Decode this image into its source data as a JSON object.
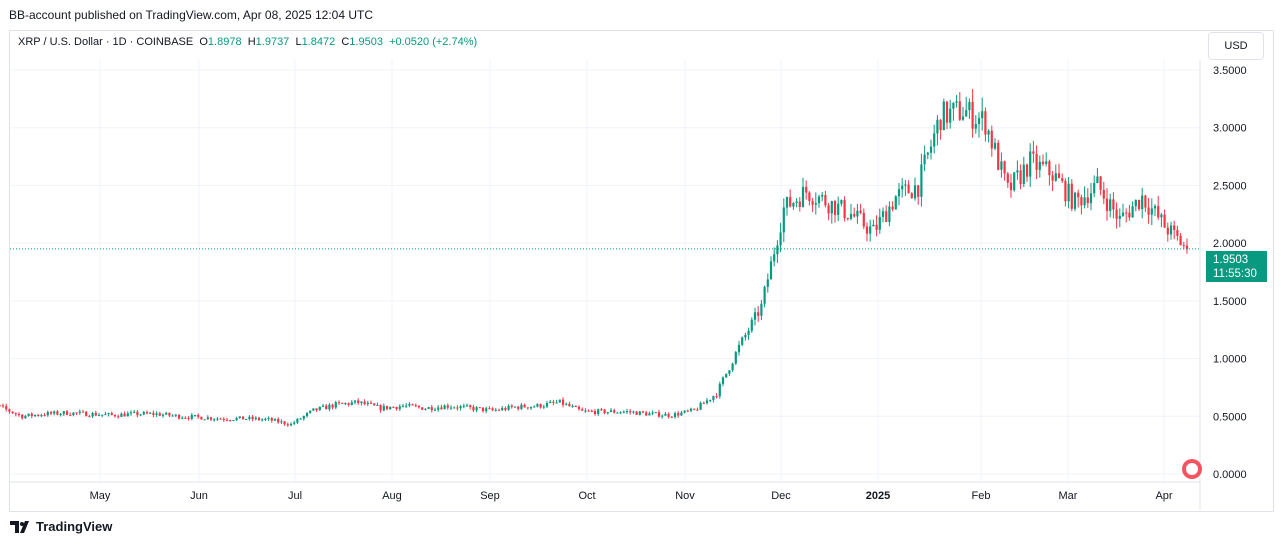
{
  "published": "BB-account published on TradingView.com, Apr 08, 2025 12:04 UTC",
  "legend": {
    "symbol": "XRP / U.S. Dollar · 1D · COINBASE",
    "o_label": "O",
    "o": "1.8978",
    "h_label": "H",
    "h": "1.9737",
    "l_label": "L",
    "l": "1.8472",
    "c_label": "C",
    "c": "1.9503",
    "change": "+0.0520 (+2.74%)"
  },
  "currency": "USD",
  "price_tag": {
    "price": "1.9503",
    "countdown": "11:55:30"
  },
  "brand": "TradingView",
  "colors": {
    "up": "#089981",
    "down": "#f23645"
  },
  "chart_data": {
    "type": "candlestick",
    "y_ticks": [
      "0.0000",
      "0.5000",
      "1.0000",
      "1.5000",
      "2.0000",
      "2.5000",
      "3.0000",
      "3.5000"
    ],
    "ylim": [
      0,
      3.5
    ],
    "x_ticks": [
      "May",
      "Jun",
      "Jul",
      "Aug",
      "Sep",
      "Oct",
      "Nov",
      "Dec",
      "2025",
      "Feb",
      "Mar",
      "Apr"
    ],
    "start_date": "2024-04-03",
    "weekly_closes": [
      0.62,
      0.58,
      0.5,
      0.52,
      0.53,
      0.52,
      0.51,
      0.52,
      0.52,
      0.5,
      0.49,
      0.48,
      0.48,
      0.47,
      0.43,
      0.55,
      0.6,
      0.62,
      0.57,
      0.59,
      0.57,
      0.59,
      0.57,
      0.55,
      0.58,
      0.59,
      0.62,
      0.54,
      0.54,
      0.54,
      0.52,
      0.51,
      0.55,
      0.7,
      1.1,
      1.45,
      2.3,
      2.45,
      2.35,
      2.25,
      2.1,
      2.4,
      2.5,
      3.1,
      3.15,
      3.05,
      2.45,
      2.7,
      2.6,
      2.35,
      2.5,
      2.2,
      2.4,
      2.15,
      1.95
    ],
    "last_close": 1.9503
  }
}
